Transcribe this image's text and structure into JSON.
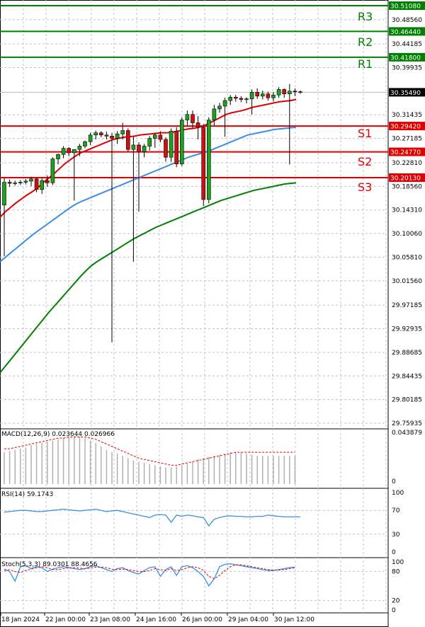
{
  "chart_data": {
    "type": "candlestick",
    "price_axis": {
      "ticks": [
        "30.51080",
        "30.48560",
        "30.44185",
        "30.39935",
        "30.35490",
        "30.31435",
        "30.27185",
        "30.22810",
        "30.18560",
        "30.14310",
        "30.10060",
        "30.05810",
        "30.01560",
        "29.97185",
        "29.92935",
        "29.88685",
        "29.84435",
        "29.80185",
        "29.75935"
      ],
      "current_price": "30.35490"
    },
    "levels": [
      {
        "id": "R3",
        "label": "R3",
        "value": "30.51080",
        "color": "#008000"
      },
      {
        "id": "R2",
        "label": "R2",
        "value": "30.46440",
        "color": "#008000"
      },
      {
        "id": "R1",
        "label": "R1",
        "value": "30.41800",
        "color": "#008000"
      },
      {
        "id": "S1",
        "label": "S1",
        "value": "30.29420",
        "color": "#e00000"
      },
      {
        "id": "S2",
        "label": "S2",
        "value": "30.24770",
        "color": "#e00000"
      },
      {
        "id": "S3",
        "label": "S3",
        "value": "30.20130",
        "color": "#e00000"
      }
    ],
    "x_axis": {
      "ticks": [
        "18 Jan 2024",
        "22 Jan 00:00",
        "23 Jan 08:00",
        "24 Jan 16:00",
        "26 Jan 00:00",
        "29 Jan 04:00",
        "30 Jan 12:00"
      ]
    },
    "candles": [
      {
        "o": 30.152,
        "h": 30.2,
        "l": 30.06,
        "c": 30.193
      },
      {
        "o": 30.193,
        "h": 30.198,
        "l": 30.185,
        "c": 30.191
      },
      {
        "o": 30.191,
        "h": 30.196,
        "l": 30.187,
        "c": 30.192
      },
      {
        "o": 30.192,
        "h": 30.197,
        "l": 30.188,
        "c": 30.193
      },
      {
        "o": 30.193,
        "h": 30.199,
        "l": 30.189,
        "c": 30.195
      },
      {
        "o": 30.195,
        "h": 30.203,
        "l": 30.186,
        "c": 30.199
      },
      {
        "o": 30.199,
        "h": 30.201,
        "l": 30.175,
        "c": 30.18
      },
      {
        "o": 30.18,
        "h": 30.2,
        "l": 30.172,
        "c": 30.196
      },
      {
        "o": 30.196,
        "h": 30.205,
        "l": 30.185,
        "c": 30.192
      },
      {
        "o": 30.192,
        "h": 30.238,
        "l": 30.188,
        "c": 30.235
      },
      {
        "o": 30.235,
        "h": 30.245,
        "l": 30.225,
        "c": 30.243
      },
      {
        "o": 30.243,
        "h": 30.258,
        "l": 30.236,
        "c": 30.254
      },
      {
        "o": 30.254,
        "h": 30.256,
        "l": 30.24,
        "c": 30.246
      },
      {
        "o": 30.246,
        "h": 30.252,
        "l": 30.16,
        "c": 30.252
      },
      {
        "o": 30.252,
        "h": 30.262,
        "l": 30.24,
        "c": 30.258
      },
      {
        "o": 30.258,
        "h": 30.268,
        "l": 30.254,
        "c": 30.266
      },
      {
        "o": 30.266,
        "h": 30.282,
        "l": 30.26,
        "c": 30.278
      },
      {
        "o": 30.278,
        "h": 30.286,
        "l": 30.27,
        "c": 30.282
      },
      {
        "o": 30.282,
        "h": 30.285,
        "l": 30.274,
        "c": 30.278
      },
      {
        "o": 30.278,
        "h": 30.284,
        "l": 30.27,
        "c": 30.276
      },
      {
        "o": 30.276,
        "h": 30.282,
        "l": 29.905,
        "c": 30.272
      },
      {
        "o": 30.272,
        "h": 30.285,
        "l": 30.262,
        "c": 30.28
      },
      {
        "o": 30.28,
        "h": 30.3,
        "l": 30.27,
        "c": 30.286
      },
      {
        "o": 30.286,
        "h": 30.29,
        "l": 30.248,
        "c": 30.252
      },
      {
        "o": 30.252,
        "h": 30.275,
        "l": 30.05,
        "c": 30.26
      },
      {
        "o": 30.26,
        "h": 30.265,
        "l": 30.14,
        "c": 30.248
      },
      {
        "o": 30.248,
        "h": 30.262,
        "l": 30.238,
        "c": 30.258
      },
      {
        "o": 30.258,
        "h": 30.276,
        "l": 30.25,
        "c": 30.272
      },
      {
        "o": 30.272,
        "h": 30.282,
        "l": 30.255,
        "c": 30.278
      },
      {
        "o": 30.278,
        "h": 30.285,
        "l": 30.265,
        "c": 30.27
      },
      {
        "o": 30.27,
        "h": 30.274,
        "l": 30.23,
        "c": 30.238
      },
      {
        "o": 30.238,
        "h": 30.29,
        "l": 30.23,
        "c": 30.285
      },
      {
        "o": 30.285,
        "h": 30.292,
        "l": 30.22,
        "c": 30.226
      },
      {
        "o": 30.226,
        "h": 30.31,
        "l": 30.222,
        "c": 30.305
      },
      {
        "o": 30.305,
        "h": 30.322,
        "l": 30.295,
        "c": 30.315
      },
      {
        "o": 30.315,
        "h": 30.322,
        "l": 30.29,
        "c": 30.3
      },
      {
        "o": 30.3,
        "h": 30.312,
        "l": 30.27,
        "c": 30.292
      },
      {
        "o": 30.292,
        "h": 30.298,
        "l": 30.15,
        "c": 30.162
      },
      {
        "o": 30.162,
        "h": 30.31,
        "l": 30.155,
        "c": 30.305
      },
      {
        "o": 30.305,
        "h": 30.332,
        "l": 30.295,
        "c": 30.325
      },
      {
        "o": 30.325,
        "h": 30.336,
        "l": 30.318,
        "c": 30.33
      },
      {
        "o": 30.33,
        "h": 30.345,
        "l": 30.275,
        "c": 30.34
      },
      {
        "o": 30.34,
        "h": 30.35,
        "l": 30.332,
        "c": 30.346
      },
      {
        "o": 30.346,
        "h": 30.35,
        "l": 30.338,
        "c": 30.344
      },
      {
        "o": 30.344,
        "h": 30.348,
        "l": 30.337,
        "c": 30.342
      },
      {
        "o": 30.342,
        "h": 30.346,
        "l": 30.335,
        "c": 30.343
      },
      {
        "o": 30.343,
        "h": 30.36,
        "l": 30.315,
        "c": 30.355
      },
      {
        "o": 30.355,
        "h": 30.362,
        "l": 30.343,
        "c": 30.348
      },
      {
        "o": 30.348,
        "h": 30.358,
        "l": 30.342,
        "c": 30.352
      },
      {
        "o": 30.352,
        "h": 30.356,
        "l": 30.34,
        "c": 30.345
      },
      {
        "o": 30.345,
        "h": 30.355,
        "l": 30.338,
        "c": 30.35
      },
      {
        "o": 30.35,
        "h": 30.364,
        "l": 30.345,
        "c": 30.36
      },
      {
        "o": 30.36,
        "h": 30.362,
        "l": 30.345,
        "c": 30.352
      },
      {
        "o": 30.352,
        "h": 30.37,
        "l": 30.225,
        "c": 30.357
      },
      {
        "o": 30.357,
        "h": 30.362,
        "l": 30.348,
        "c": 30.356
      },
      {
        "o": 30.356,
        "h": 30.358,
        "l": 30.352,
        "c": 30.355
      }
    ],
    "moving_averages": [
      {
        "id": "ma-red",
        "color": "#e00000",
        "points": [
          30.13,
          30.14,
          30.148,
          30.156,
          30.163,
          30.17,
          30.176,
          30.183,
          30.192,
          30.2,
          30.208,
          30.217,
          30.226,
          30.233,
          30.24,
          30.246,
          30.25,
          30.254,
          30.258,
          30.262,
          30.266,
          30.27,
          30.272,
          30.274,
          30.275,
          30.276,
          30.278,
          30.279,
          30.28,
          30.281,
          30.282,
          30.282,
          30.283,
          30.285,
          30.287,
          30.289,
          30.29,
          30.292,
          30.295,
          30.3,
          30.305,
          30.31,
          30.315,
          30.318,
          30.32,
          30.322,
          30.325,
          30.328,
          30.33,
          30.332,
          30.334,
          30.336,
          30.338,
          30.339,
          30.34,
          30.342
        ]
      },
      {
        "id": "ma-blue",
        "color": "#3a8ee6",
        "points": [
          30.05,
          30.058,
          30.066,
          30.074,
          30.082,
          30.09,
          30.098,
          30.105,
          30.112,
          30.119,
          30.126,
          30.133,
          30.14,
          30.147,
          30.153,
          30.158,
          30.162,
          30.166,
          30.17,
          30.174,
          30.178,
          30.182,
          30.186,
          30.19,
          30.194,
          30.198,
          30.202,
          30.206,
          30.21,
          30.214,
          30.218,
          30.222,
          30.226,
          30.23,
          30.234,
          30.238,
          30.241,
          30.244,
          30.247,
          30.25,
          30.254,
          30.258,
          30.262,
          30.266,
          30.27,
          30.274,
          30.278,
          30.28,
          30.282,
          30.284,
          30.286,
          30.288,
          30.289,
          30.29,
          30.291,
          30.292
        ]
      },
      {
        "id": "ma-green",
        "color": "#008000",
        "points": [
          29.85,
          29.862,
          29.874,
          29.886,
          29.898,
          29.91,
          29.922,
          29.934,
          29.946,
          29.958,
          29.969,
          29.98,
          29.991,
          30.002,
          30.013,
          30.024,
          30.034,
          30.043,
          30.05,
          30.056,
          30.062,
          30.068,
          30.074,
          30.08,
          30.086,
          30.092,
          30.097,
          30.102,
          30.107,
          30.112,
          30.116,
          30.12,
          30.124,
          30.128,
          30.132,
          30.136,
          30.14,
          30.144,
          30.148,
          30.152,
          30.156,
          30.16,
          30.163,
          30.166,
          30.169,
          30.172,
          30.175,
          30.178,
          30.18,
          30.182,
          30.184,
          30.186,
          30.188,
          30.19,
          30.191,
          30.192
        ]
      }
    ],
    "macd": {
      "label": "MACD(12,26,9) 0.023644 0.026966",
      "ticks": [
        "0.043879",
        "0"
      ],
      "max": 0.043879,
      "histogram": [
        0.027,
        0.028,
        0.029,
        0.03,
        0.031,
        0.033,
        0.034,
        0.035,
        0.036,
        0.037,
        0.038,
        0.039,
        0.04,
        0.04,
        0.04,
        0.039,
        0.037,
        0.035,
        0.032,
        0.029,
        0.027,
        0.026,
        0.024,
        0.022,
        0.02,
        0.019,
        0.018,
        0.017,
        0.016,
        0.015,
        0.014,
        0.014,
        0.015,
        0.016,
        0.017,
        0.019,
        0.021,
        0.022,
        0.023,
        0.024,
        0.025,
        0.026,
        0.027,
        0.027,
        0.027,
        0.026,
        0.025,
        0.024,
        0.024,
        0.024,
        0.024,
        0.024,
        0.024,
        0.024,
        0.024
      ],
      "signal": [
        0.03,
        0.03,
        0.031,
        0.032,
        0.033,
        0.034,
        0.035,
        0.036,
        0.037,
        0.038,
        0.039,
        0.039,
        0.04,
        0.04,
        0.04,
        0.04,
        0.039,
        0.038,
        0.036,
        0.034,
        0.032,
        0.03,
        0.028,
        0.026,
        0.024,
        0.022,
        0.021,
        0.02,
        0.019,
        0.018,
        0.017,
        0.016,
        0.016,
        0.017,
        0.018,
        0.019,
        0.02,
        0.021,
        0.022,
        0.023,
        0.024,
        0.025,
        0.026,
        0.027,
        0.027,
        0.027,
        0.027,
        0.027,
        0.027,
        0.027,
        0.027,
        0.027,
        0.027,
        0.027,
        0.027
      ]
    },
    "rsi": {
      "label": "RSI(14) 59.1743",
      "ticks": [
        "100",
        "70",
        "30",
        "0"
      ],
      "values": [
        67,
        68,
        69,
        70,
        70,
        69,
        68,
        68,
        69,
        70,
        71,
        72,
        71,
        70,
        69,
        70,
        71,
        72,
        70,
        68,
        69,
        70,
        68,
        66,
        64,
        62,
        60,
        58,
        62,
        63,
        62,
        50,
        62,
        60,
        62,
        61,
        59,
        58,
        44,
        55,
        58,
        60,
        61,
        60,
        60,
        59,
        59,
        60,
        60,
        62,
        61,
        60,
        59,
        59,
        59,
        59
      ]
    },
    "stoch": {
      "label": "Stoch(5,3,3) 89.0301 88.4656",
      "ticks": [
        "100",
        "80",
        "20",
        "0"
      ],
      "k": [
        85,
        80,
        60,
        90,
        92,
        86,
        90,
        88,
        80,
        85,
        88,
        90,
        88,
        86,
        84,
        86,
        90,
        92,
        88,
        84,
        80,
        86,
        88,
        82,
        78,
        75,
        82,
        88,
        90,
        70,
        84,
        90,
        72,
        90,
        92,
        88,
        80,
        70,
        50,
        65,
        90,
        95,
        96,
        94,
        92,
        90,
        88,
        86,
        84,
        82,
        82,
        84,
        86,
        88,
        89
      ],
      "d": [
        82,
        84,
        80,
        78,
        82,
        85,
        88,
        90,
        88,
        84,
        84,
        86,
        88,
        88,
        87,
        86,
        87,
        89,
        89,
        88,
        85,
        84,
        85,
        84,
        82,
        80,
        80,
        82,
        86,
        84,
        82,
        86,
        82,
        84,
        88,
        90,
        88,
        82,
        70,
        65,
        72,
        82,
        90,
        94,
        94,
        92,
        90,
        88,
        86,
        84,
        83,
        83,
        84,
        86,
        88
      ]
    }
  }
}
